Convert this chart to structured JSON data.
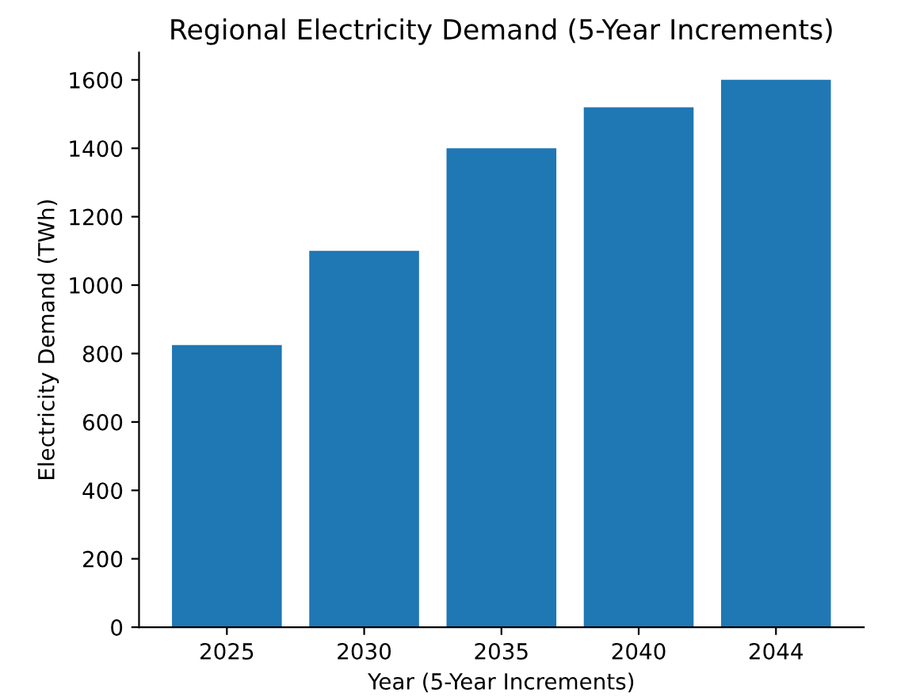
{
  "chart_data": {
    "type": "bar",
    "title": "Regional Electricity Demand (5-Year Increments)",
    "xlabel": "Year (5-Year Increments)",
    "ylabel": "Electricity Demand (TWh)",
    "categories": [
      "2025",
      "2030",
      "2035",
      "2040",
      "2044"
    ],
    "values": [
      825,
      1100,
      1400,
      1520,
      1600
    ],
    "color": "#1f77b4",
    "ylim": [
      0,
      1680
    ],
    "yticks": [
      0,
      200,
      400,
      600,
      800,
      1000,
      1200,
      1400,
      1600
    ],
    "grid": false,
    "legend": false
  }
}
